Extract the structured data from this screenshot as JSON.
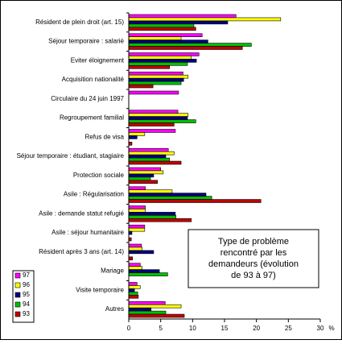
{
  "chart_data": {
    "type": "hbar",
    "annotation": [
      "Type de problème",
      "rencontré par les",
      "demandeurs (évolution",
      "de 93 à 97)"
    ],
    "x_label": "%",
    "categories": [
      "Résident de plein droit (art. 15)",
      "Séjour temporaire : salarié",
      "Eviter éloignement",
      "Acquisition nationalité",
      "Circulaire du 24 juin 1997",
      "Regroupement familial",
      "Refus de visa",
      "Séjour temporaire : étudiant, stagiaire",
      "Protection sociale",
      "Asile : Régularisation",
      "Asile : demande statut refugié",
      "Asile : séjour humanitaire",
      "Résident après 3 ans (art. 14)",
      "Mariage",
      "Visite temporaire",
      "Autres"
    ],
    "series": [
      {
        "name": "97",
        "color": "#ff00ff",
        "values": [
          16.8,
          11.5,
          11,
          8.5,
          7.8,
          7.7,
          7.3,
          6.2,
          5,
          2.6,
          2.6,
          2.5,
          2,
          1.8,
          1.3,
          5.7
        ]
      },
      {
        "name": "96",
        "color": "#ffff00",
        "values": [
          23.8,
          8.2,
          9.8,
          9.3,
          0,
          9.3,
          2.5,
          7.1,
          5.4,
          6.8,
          2.6,
          2.5,
          2.1,
          2.1,
          1.8,
          8.2
        ]
      },
      {
        "name": "95",
        "color": "#000080",
        "values": [
          15.5,
          12.4,
          10.6,
          8.6,
          0,
          9.2,
          1.3,
          5.8,
          3.9,
          12.1,
          7.3,
          0.5,
          3.9,
          4.8,
          0.9,
          3.5
        ]
      },
      {
        "name": "94",
        "color": "#00c000",
        "values": [
          10.2,
          19.2,
          9.2,
          8.2,
          0,
          10.5,
          0,
          6.4,
          3.4,
          13,
          7.4,
          0,
          0,
          6.1,
          1.4,
          5.8
        ]
      },
      {
        "name": "93",
        "color": "#c00000",
        "values": [
          10.5,
          17.8,
          6.4,
          3.8,
          0,
          7.1,
          0.5,
          8.2,
          4.5,
          20.7,
          9.8,
          0.4,
          0.6,
          0,
          1.5,
          8.7
        ]
      }
    ],
    "xlim": [
      0,
      30
    ],
    "xticks": [
      0,
      5,
      10,
      15,
      20,
      25,
      30
    ],
    "legend": "bottom-left"
  }
}
